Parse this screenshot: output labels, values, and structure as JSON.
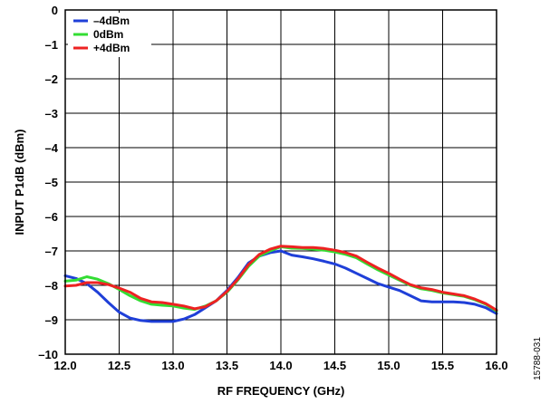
{
  "chart_data": {
    "type": "line",
    "title": "",
    "xlabel": "RF FREQUENCY (GHz)",
    "ylabel": "INPUT P1dB (dBm)",
    "xlim": [
      12.0,
      16.0
    ],
    "ylim": [
      -10,
      0
    ],
    "x_ticks": [
      "12.0",
      "12.5",
      "13.0",
      "13.5",
      "14.0",
      "14.5",
      "15.0",
      "15.5",
      "16.0"
    ],
    "y_ticks": [
      "0",
      "–1",
      "–2",
      "–3",
      "–4",
      "–5",
      "–6",
      "–7",
      "–8",
      "–9",
      "–10"
    ],
    "grid": true,
    "legend_position": "top-left",
    "figure_id": "15788-031",
    "series": [
      {
        "name": "–4dBm",
        "color": "#1f3fd8",
        "points": [
          [
            12.0,
            -7.72
          ],
          [
            12.1,
            -7.8
          ],
          [
            12.2,
            -7.95
          ],
          [
            12.3,
            -8.2
          ],
          [
            12.4,
            -8.5
          ],
          [
            12.5,
            -8.78
          ],
          [
            12.6,
            -8.95
          ],
          [
            12.7,
            -9.02
          ],
          [
            12.8,
            -9.05
          ],
          [
            12.9,
            -9.05
          ],
          [
            13.0,
            -9.05
          ],
          [
            13.1,
            -8.98
          ],
          [
            13.2,
            -8.85
          ],
          [
            13.3,
            -8.65
          ],
          [
            13.4,
            -8.45
          ],
          [
            13.5,
            -8.15
          ],
          [
            13.6,
            -7.78
          ],
          [
            13.7,
            -7.35
          ],
          [
            13.8,
            -7.15
          ],
          [
            13.9,
            -7.05
          ],
          [
            14.0,
            -7.0
          ],
          [
            14.1,
            -7.12
          ],
          [
            14.2,
            -7.17
          ],
          [
            14.3,
            -7.23
          ],
          [
            14.4,
            -7.3
          ],
          [
            14.5,
            -7.38
          ],
          [
            14.6,
            -7.5
          ],
          [
            14.7,
            -7.65
          ],
          [
            14.8,
            -7.8
          ],
          [
            14.9,
            -7.95
          ],
          [
            15.0,
            -8.05
          ],
          [
            15.1,
            -8.15
          ],
          [
            15.2,
            -8.3
          ],
          [
            15.3,
            -8.45
          ],
          [
            15.4,
            -8.48
          ],
          [
            15.5,
            -8.48
          ],
          [
            15.6,
            -8.48
          ],
          [
            15.7,
            -8.5
          ],
          [
            15.8,
            -8.55
          ],
          [
            15.9,
            -8.65
          ],
          [
            16.0,
            -8.82
          ]
        ]
      },
      {
        "name": "0dBm",
        "color": "#33dd33",
        "points": [
          [
            12.0,
            -7.88
          ],
          [
            12.1,
            -7.85
          ],
          [
            12.2,
            -7.75
          ],
          [
            12.3,
            -7.82
          ],
          [
            12.4,
            -7.95
          ],
          [
            12.5,
            -8.12
          ],
          [
            12.6,
            -8.3
          ],
          [
            12.7,
            -8.45
          ],
          [
            12.8,
            -8.55
          ],
          [
            12.9,
            -8.58
          ],
          [
            13.0,
            -8.6
          ],
          [
            13.1,
            -8.66
          ],
          [
            13.2,
            -8.7
          ],
          [
            13.3,
            -8.6
          ],
          [
            13.4,
            -8.45
          ],
          [
            13.5,
            -8.2
          ],
          [
            13.6,
            -7.85
          ],
          [
            13.7,
            -7.45
          ],
          [
            13.8,
            -7.15
          ],
          [
            13.9,
            -7.0
          ],
          [
            14.0,
            -6.88
          ],
          [
            14.1,
            -6.92
          ],
          [
            14.2,
            -6.93
          ],
          [
            14.3,
            -6.95
          ],
          [
            14.4,
            -6.98
          ],
          [
            14.5,
            -7.03
          ],
          [
            14.6,
            -7.1
          ],
          [
            14.7,
            -7.2
          ],
          [
            14.8,
            -7.38
          ],
          [
            14.9,
            -7.55
          ],
          [
            15.0,
            -7.7
          ],
          [
            15.1,
            -7.85
          ],
          [
            15.2,
            -8.0
          ],
          [
            15.3,
            -8.1
          ],
          [
            15.4,
            -8.15
          ],
          [
            15.5,
            -8.22
          ],
          [
            15.6,
            -8.27
          ],
          [
            15.7,
            -8.32
          ],
          [
            15.8,
            -8.42
          ],
          [
            15.9,
            -8.55
          ],
          [
            16.0,
            -8.75
          ]
        ]
      },
      {
        "name": "+4dBm",
        "color": "#ee2222",
        "points": [
          [
            12.0,
            -8.02
          ],
          [
            12.1,
            -8.0
          ],
          [
            12.2,
            -7.92
          ],
          [
            12.3,
            -7.92
          ],
          [
            12.4,
            -7.98
          ],
          [
            12.5,
            -8.08
          ],
          [
            12.6,
            -8.2
          ],
          [
            12.7,
            -8.38
          ],
          [
            12.8,
            -8.48
          ],
          [
            12.9,
            -8.5
          ],
          [
            13.0,
            -8.55
          ],
          [
            13.1,
            -8.6
          ],
          [
            13.2,
            -8.68
          ],
          [
            13.3,
            -8.62
          ],
          [
            13.4,
            -8.45
          ],
          [
            13.5,
            -8.18
          ],
          [
            13.6,
            -7.82
          ],
          [
            13.7,
            -7.4
          ],
          [
            13.8,
            -7.1
          ],
          [
            13.9,
            -6.95
          ],
          [
            14.0,
            -6.86
          ],
          [
            14.1,
            -6.88
          ],
          [
            14.2,
            -6.9
          ],
          [
            14.3,
            -6.9
          ],
          [
            14.4,
            -6.93
          ],
          [
            14.5,
            -6.98
          ],
          [
            14.6,
            -7.05
          ],
          [
            14.7,
            -7.15
          ],
          [
            14.8,
            -7.33
          ],
          [
            14.9,
            -7.5
          ],
          [
            15.0,
            -7.65
          ],
          [
            15.1,
            -7.82
          ],
          [
            15.2,
            -7.98
          ],
          [
            15.3,
            -8.07
          ],
          [
            15.4,
            -8.12
          ],
          [
            15.5,
            -8.2
          ],
          [
            15.6,
            -8.25
          ],
          [
            15.7,
            -8.3
          ],
          [
            15.8,
            -8.4
          ],
          [
            15.9,
            -8.53
          ],
          [
            16.0,
            -8.72
          ]
        ]
      }
    ]
  }
}
